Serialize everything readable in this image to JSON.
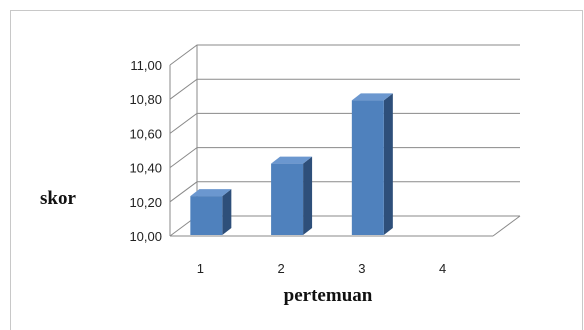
{
  "chart_data": {
    "type": "bar",
    "categories": [
      "1",
      "2",
      "3",
      "4"
    ],
    "values": [
      10.28,
      10.47,
      10.84,
      null
    ],
    "xlabel": "pertemuan",
    "ylabel": "skor",
    "ylim": [
      10.0,
      11.0
    ],
    "yticks": [
      "10,00",
      "10,20",
      "10,40",
      "10,60",
      "10,80",
      "11,00"
    ],
    "grid": true,
    "three_d": true,
    "colors": {
      "front": "#4f81bd",
      "side": "#2e4f7a",
      "top": "#6b97cf"
    }
  }
}
